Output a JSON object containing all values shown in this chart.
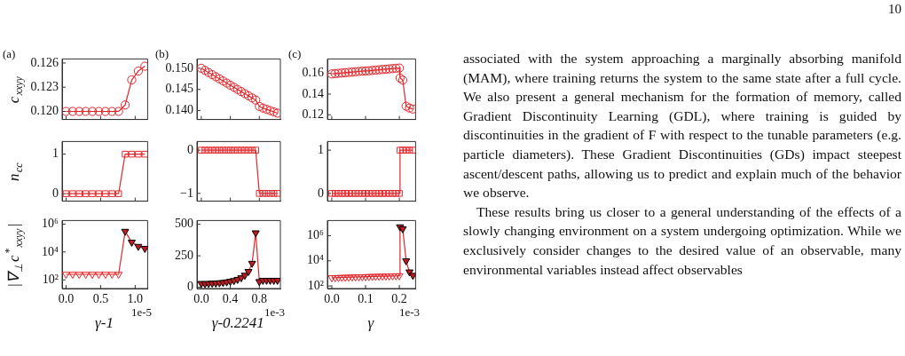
{
  "chart_data": [
    {
      "type": "line",
      "ylabel": "c$_{xxyy}$",
      "annotations": [
        "(a)"
      ],
      "marker": "circle",
      "tick_labels": "y",
      "x": [
        0,
        0.095,
        0.19,
        0.285,
        0.38,
        0.475,
        0.57,
        0.665,
        0.76,
        0.855,
        0.95,
        1.045,
        1.14
      ],
      "xlim": [
        -0.057,
        1.18
      ],
      "xticks": [
        {
          "value": 0,
          "label": null
        },
        {
          "value": 0.5,
          "label": null
        },
        {
          "value": 1,
          "label": null
        }
      ],
      "ylim": [
        0.119,
        0.1265
      ],
      "yticks": [
        {
          "value": 0.12,
          "label": "0.120"
        },
        0.123,
        0.126
      ],
      "series": [
        {
          "color": "#e3262b",
          "values": [
            0.12,
            0.12,
            0.12,
            0.12,
            0.12,
            0.12,
            0.12,
            0.12,
            0.12,
            0.1208,
            0.1239,
            0.125,
            0.1256
          ]
        }
      ]
    },
    {
      "type": "line",
      "annotations": [
        "(b)"
      ],
      "marker": "circle",
      "tick_labels": "y",
      "x": [
        0,
        0.05,
        0.1,
        0.15,
        0.2,
        0.25,
        0.3,
        0.35,
        0.4,
        0.45,
        0.5,
        0.55,
        0.6,
        0.65,
        0.7,
        0.75,
        0.8,
        0.85,
        0.9,
        0.95,
        1.0,
        1.05
      ],
      "xlim": [
        -0.06,
        1.09
      ],
      "xticks": [
        {
          "value": 0,
          "label": null
        },
        {
          "value": 0.4,
          "label": null
        },
        {
          "value": 0.8,
          "label": null
        }
      ],
      "ylim": [
        0.1379,
        0.1522
      ],
      "yticks": [
        {
          "value": 0.14,
          "label": "0.140"
        },
        0.145,
        {
          "value": 0.15,
          "label": "0.150"
        }
      ],
      "series": [
        {
          "color": "#e3262b",
          "values": [
            0.15,
            0.1495,
            0.149,
            0.1485,
            0.148,
            0.1475,
            0.147,
            0.1465,
            0.146,
            0.1455,
            0.145,
            0.1445,
            0.144,
            0.1435,
            0.143,
            0.1425,
            0.141,
            0.1406,
            0.1403,
            0.14,
            0.1397,
            0.1394
          ]
        }
      ]
    },
    {
      "type": "line",
      "annotations": [
        "(c)"
      ],
      "marker": "circle",
      "tick_labels": "y",
      "x": [
        0,
        0.01,
        0.02,
        0.03,
        0.04,
        0.05,
        0.06,
        0.07,
        0.08,
        0.09,
        0.1,
        0.11,
        0.12,
        0.13,
        0.14,
        0.15,
        0.16,
        0.17,
        0.18,
        0.19,
        0.2,
        0.202,
        0.21,
        0.22,
        0.23,
        0.24
      ],
      "xlim": [
        -0.013,
        0.248
      ],
      "xticks": [
        {
          "value": 0,
          "label": null
        },
        {
          "value": 0.1,
          "label": null
        },
        {
          "value": 0.2,
          "label": null
        }
      ],
      "ylim": [
        0.1154,
        0.174
      ],
      "yticks": [
        {
          "value": 0.12,
          "label": "0.12"
        },
        {
          "value": 0.14,
          "label": "0.14"
        },
        {
          "value": 0.16,
          "label": "0.16"
        }
      ],
      "series": [
        {
          "color": "#e3262b",
          "values": [
            0.1595,
            0.1598,
            0.1601,
            0.1604,
            0.1607,
            0.161,
            0.1613,
            0.1616,
            0.1619,
            0.1622,
            0.1624,
            0.1626,
            0.1629,
            0.1632,
            0.1635,
            0.1638,
            0.1641,
            0.1644,
            0.1647,
            0.165,
            0.1652,
            0.1556,
            0.1535,
            0.1283,
            0.1265,
            0.1255
          ]
        }
      ]
    },
    {
      "type": "line",
      "ylabel": "n$_{cc}$",
      "marker": "square",
      "tick_labels": "y",
      "x": [
        0,
        0.095,
        0.19,
        0.285,
        0.38,
        0.475,
        0.57,
        0.665,
        0.76,
        0.855,
        0.95,
        1.045,
        1.14
      ],
      "xlim": [
        -0.057,
        1.18
      ],
      "xticks": [
        {
          "value": 0,
          "label": null
        },
        {
          "value": 0.5,
          "label": null
        },
        {
          "value": 1,
          "label": null
        }
      ],
      "ylim": [
        -0.19,
        1.32
      ],
      "yticks": [
        0,
        1
      ],
      "series": [
        {
          "color": "#e3262b",
          "values": [
            0,
            0,
            0,
            0,
            0,
            0,
            0,
            0,
            0,
            1,
            1,
            1,
            1
          ]
        }
      ]
    },
    {
      "type": "line",
      "marker": "square",
      "tick_labels": "y",
      "x": [
        0,
        0.05,
        0.1,
        0.15,
        0.2,
        0.25,
        0.3,
        0.35,
        0.4,
        0.45,
        0.5,
        0.55,
        0.6,
        0.65,
        0.7,
        0.75,
        0.8,
        0.85,
        0.9,
        0.95,
        1.0,
        1.05
      ],
      "xlim": [
        -0.06,
        1.09
      ],
      "xticks": [
        {
          "value": 0,
          "label": null
        },
        {
          "value": 0.4,
          "label": null
        },
        {
          "value": 0.8,
          "label": null
        }
      ],
      "ylim": [
        -1.18,
        0.2
      ],
      "yticks": [
        {
          "value": -1,
          "label": "−1"
        },
        0
      ],
      "series": [
        {
          "color": "#e3262b",
          "values": [
            0,
            0,
            0,
            0,
            0,
            0,
            0,
            0,
            0,
            0,
            0,
            0,
            0,
            0,
            0,
            0,
            -1,
            -1,
            -1,
            -1,
            -1,
            -1
          ]
        }
      ]
    },
    {
      "type": "line",
      "marker": "square",
      "tick_labels": "y",
      "x": [
        0,
        0.01,
        0.02,
        0.03,
        0.04,
        0.05,
        0.06,
        0.07,
        0.08,
        0.09,
        0.1,
        0.11,
        0.12,
        0.13,
        0.14,
        0.15,
        0.16,
        0.17,
        0.18,
        0.19,
        0.2,
        0.202,
        0.21,
        0.22,
        0.23,
        0.24
      ],
      "xlim": [
        -0.013,
        0.248
      ],
      "xticks": [
        {
          "value": 0,
          "label": null
        },
        {
          "value": 0.1,
          "label": null
        },
        {
          "value": 0.2,
          "label": null
        }
      ],
      "ylim": [
        -0.18,
        1.2
      ],
      "yticks": [
        0,
        1
      ],
      "series": [
        {
          "color": "#e3262b",
          "values": [
            0,
            0,
            0,
            0,
            0,
            0,
            0,
            0,
            0,
            0,
            0,
            0,
            0,
            0,
            0,
            0,
            0,
            0,
            0,
            0,
            0,
            1,
            1,
            1,
            1,
            1
          ]
        }
      ]
    },
    {
      "type": "line",
      "xlabel": "γ-1",
      "ylabel": "|∇$_{⊥}$c$^{*}$$_{xxyy}$|",
      "annotations": [
        "1e-5"
      ],
      "marker": "triangle",
      "log": true,
      "x": [
        0,
        0.095,
        0.19,
        0.285,
        0.38,
        0.475,
        0.57,
        0.665,
        0.76,
        0.855,
        0.95,
        1.045,
        1.14
      ],
      "xlim": [
        -0.057,
        1.18
      ],
      "xticks": [
        {
          "value": 0,
          "label": "0.0"
        },
        0.5,
        {
          "value": 1,
          "label": "1.0"
        }
      ],
      "ylim": [
        24,
        1800000
      ],
      "yticks": [
        {
          "value": 100,
          "label": "10²"
        },
        {
          "value": 10000,
          "label": "10⁴"
        },
        {
          "value": 1000000,
          "label": "10⁶"
        }
      ],
      "series": [
        {
          "color": "#e3262b",
          "values": [
            250,
            250,
            250,
            250,
            250,
            250,
            250,
            250,
            250,
            300000,
            50000,
            25000,
            18000
          ],
          "colors": [
            "#e3262b",
            "#e3262b",
            "#e3262b",
            "#e3262b",
            "#e3262b",
            "#e3262b",
            "#e3262b",
            "#e3262b",
            "#e3262b",
            "#c01a1f",
            "#c01a1f",
            "#c01a1f",
            "#c01a1f"
          ]
        }
      ]
    },
    {
      "type": "line",
      "xlabel": "γ-0.2241",
      "annotations": [
        "1e-3"
      ],
      "marker": "triangle",
      "x": [
        0,
        0.05,
        0.1,
        0.15,
        0.2,
        0.25,
        0.3,
        0.35,
        0.4,
        0.45,
        0.5,
        0.55,
        0.6,
        0.65,
        0.7,
        0.75,
        0.8,
        0.85,
        0.9,
        0.95,
        1.0,
        1.05
      ],
      "xlim": [
        -0.06,
        1.09
      ],
      "xticks": [
        {
          "value": 0,
          "label": "0.0"
        },
        0.4,
        0.8
      ],
      "ylim": [
        -10,
        530
      ],
      "yticks": [
        0,
        250,
        500
      ],
      "series": [
        {
          "color": "#e3262b",
          "values": [
            30,
            28,
            30,
            32,
            33,
            35,
            38,
            42,
            47,
            53,
            62,
            75,
            95,
            125,
            190,
            432,
            45,
            55,
            55,
            55,
            55,
            55
          ],
          "colors": [
            "#c01a1f",
            "#c01a1f",
            "#c01a1f",
            "#c01a1f",
            "#c01a1f",
            "#c01a1f",
            "#c01a1f",
            "#c01a1f",
            "#c01a1f",
            "#c01a1f",
            "#c01a1f",
            "#c01a1f",
            "#c01a1f",
            "#c01a1f",
            "#c01a1f",
            "#c01a1f",
            "#c01a1f",
            "#c01a1f",
            "#c01a1f",
            "#c01a1f",
            "#c01a1f",
            "#c01a1f"
          ]
        }
      ]
    },
    {
      "type": "line",
      "xlabel": "γ",
      "annotations": [
        "1e-3"
      ],
      "marker": "triangle",
      "log": true,
      "x": [
        0,
        0.01,
        0.02,
        0.03,
        0.04,
        0.05,
        0.06,
        0.07,
        0.08,
        0.09,
        0.1,
        0.11,
        0.12,
        0.13,
        0.14,
        0.15,
        0.16,
        0.17,
        0.18,
        0.19,
        0.2,
        0.202,
        0.21,
        0.22,
        0.23,
        0.24
      ],
      "xlim": [
        -0.013,
        0.248
      ],
      "xticks": [
        {
          "value": 0,
          "label": "0.0"
        },
        0.1,
        0.2
      ],
      "ylim": [
        63,
        16000000
      ],
      "yticks": [
        {
          "value": 100,
          "label": "10²"
        },
        {
          "value": 10000,
          "label": "10⁴"
        },
        {
          "value": 1000000,
          "label": "10⁶"
        }
      ],
      "series": [
        {
          "color": "#e3262b",
          "values": [
            450,
            460,
            470,
            480,
            490,
            500,
            510,
            520,
            530,
            540,
            550,
            560,
            570,
            580,
            590,
            600,
            610,
            620,
            630,
            640,
            650,
            5000000,
            3500000,
            10000,
            1300,
            700
          ],
          "colors": [
            "#e3262b",
            "#e3262b",
            "#e3262b",
            "#e3262b",
            "#e3262b",
            "#e3262b",
            "#e3262b",
            "#e3262b",
            "#e3262b",
            "#e3262b",
            "#e3262b",
            "#e3262b",
            "#e3262b",
            "#e3262b",
            "#e3262b",
            "#e3262b",
            "#e3262b",
            "#e3262b",
            "#e3262b",
            "#e3262b",
            "#e3262b",
            "#c01a1f",
            "#c01a1f",
            "#c01a1f",
            "#c01a1f",
            "#c01a1f"
          ]
        }
      ]
    },
    {
      "type": "other",
      "annotations": [
        "10",
        "associated with the system approaching a marginally absorbing manifold (MAM), where training returns the system to the same state after a full cycle. We also present a general mechanism for the formation of memory, called Gradient Discontinuity Learning (GDL), where training is guided by discontinuities in the gradient of F with respect to the tunable parameters (e.g. particle diameters). These Gradient Discontinuities (GDs) impact steepest ascent/descent paths, allowing us to predict and explain much of the behavior we observe.",
        "These results bring us closer to a general understanding of the effects of a slowly changing environment on a system undergoing optimization. While we exclusively consider changes to the desired value of an observable, many environmental variables instead affect observables"
      ]
    }
  ]
}
